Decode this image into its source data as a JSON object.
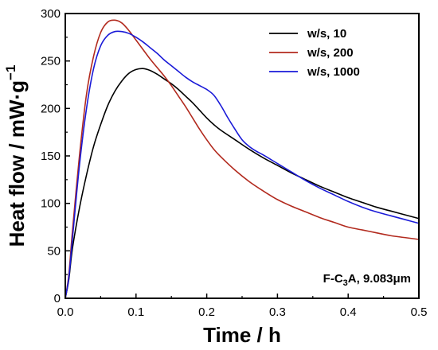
{
  "chart_data": {
    "type": "line",
    "xlabel": "Time / h",
    "ylabel": "Heat flow / mW·g",
    "ylabel_superscript": "−1",
    "xlim": [
      0,
      0.5
    ],
    "ylim": [
      0,
      300
    ],
    "xticks": [
      0.0,
      0.1,
      0.2,
      0.3,
      0.4,
      0.5
    ],
    "xtick_labels": [
      "0.0",
      "0.1",
      "0.2",
      "0.3",
      "0.4",
      "0.5"
    ],
    "yticks": [
      0,
      50,
      100,
      150,
      200,
      250,
      300
    ],
    "ytick_labels": [
      "0",
      "50",
      "100",
      "150",
      "200",
      "250",
      "300"
    ],
    "grid": false,
    "legend_position": "top-right",
    "annotation": {
      "prefix": "F-C",
      "subscript": "3",
      "suffix": "A, 9.083μm"
    },
    "series": [
      {
        "name": "w/s, 10",
        "color": "#000000",
        "x": [
          0.0,
          0.005,
          0.01,
          0.02,
          0.03,
          0.04,
          0.05,
          0.06,
          0.07,
          0.08,
          0.09,
          0.1,
          0.11,
          0.12,
          0.13,
          0.14,
          0.15,
          0.16,
          0.17,
          0.18,
          0.19,
          0.2,
          0.21,
          0.22,
          0.24,
          0.26,
          0.28,
          0.3,
          0.32,
          0.34,
          0.36,
          0.38,
          0.4,
          0.42,
          0.44,
          0.46,
          0.48,
          0.5
        ],
        "y": [
          0,
          20,
          52,
          95,
          130,
          160,
          183,
          203,
          218,
          229,
          237,
          241,
          242,
          240,
          236,
          231,
          226,
          220,
          213,
          206,
          198,
          190,
          183,
          177,
          167,
          157,
          148,
          140,
          132,
          125,
          118,
          112,
          106,
          101,
          96,
          92,
          88,
          84
        ]
      },
      {
        "name": "w/s, 200",
        "color": "#b22a1e",
        "x": [
          0.0,
          0.005,
          0.01,
          0.02,
          0.03,
          0.04,
          0.05,
          0.06,
          0.07,
          0.08,
          0.09,
          0.1,
          0.11,
          0.12,
          0.13,
          0.14,
          0.15,
          0.16,
          0.17,
          0.18,
          0.19,
          0.2,
          0.21,
          0.22,
          0.24,
          0.26,
          0.28,
          0.3,
          0.32,
          0.34,
          0.36,
          0.38,
          0.4,
          0.42,
          0.44,
          0.46,
          0.48,
          0.5
        ],
        "y": [
          0,
          25,
          70,
          150,
          215,
          255,
          280,
          291,
          293,
          290,
          282,
          272,
          262,
          252,
          243,
          234,
          224,
          213,
          202,
          190,
          178,
          167,
          157,
          149,
          135,
          123,
          113,
          104,
          97,
          91,
          85,
          80,
          75,
          72,
          69,
          66,
          64,
          62
        ]
      },
      {
        "name": "w/s, 1000",
        "color": "#1a1ad8",
        "x": [
          0.0,
          0.005,
          0.01,
          0.02,
          0.03,
          0.04,
          0.05,
          0.06,
          0.07,
          0.08,
          0.09,
          0.1,
          0.11,
          0.12,
          0.13,
          0.14,
          0.15,
          0.16,
          0.17,
          0.18,
          0.19,
          0.2,
          0.21,
          0.22,
          0.23,
          0.24,
          0.25,
          0.26,
          0.27,
          0.28,
          0.3,
          0.32,
          0.34,
          0.36,
          0.38,
          0.4,
          0.42,
          0.44,
          0.46,
          0.48,
          0.5
        ],
        "y": [
          0,
          22,
          62,
          140,
          200,
          242,
          266,
          277,
          281,
          281,
          279,
          275,
          270,
          264,
          258,
          251,
          245,
          239,
          233,
          228,
          224,
          220,
          214,
          203,
          190,
          178,
          167,
          160,
          155,
          151,
          142,
          133,
          124,
          116,
          109,
          102,
          96,
          91,
          87,
          83,
          79
        ]
      }
    ]
  }
}
